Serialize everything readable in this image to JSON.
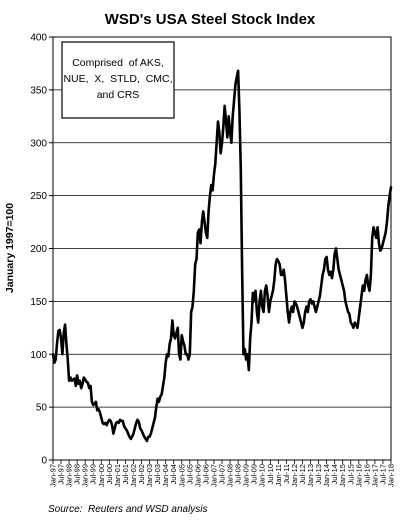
{
  "chart_data": {
    "type": "line",
    "title": "WSD's USA Steel Stock Index",
    "ylabel": "January 1997=100",
    "xlabel": "",
    "ylim": [
      0,
      400
    ],
    "yticks": [
      0,
      50,
      100,
      150,
      200,
      250,
      300,
      350,
      400
    ],
    "grid": "horizontal",
    "legend": "none",
    "annotation": [
      "Comprised  of AKS,",
      "NUE,  X,  STLD,  CMC,",
      "and CRS"
    ],
    "source": "Source:  Reuters and WSD analysis",
    "x_tick_labels": [
      "Jan-97",
      "Jul-97",
      "Jan-98",
      "Jul-98",
      "Jan-99",
      "Jul-99",
      "Jan-00",
      "Jul-00",
      "Jan-01",
      "Jul-01",
      "Jan-02",
      "Jul-02",
      "Jan-03",
      "Jul-03",
      "Jan-04",
      "Jul-04",
      "Jan-05",
      "Jul-05",
      "Jan-06",
      "Jul-06",
      "Jan-07",
      "Jul-07",
      "Jan-08",
      "Jul-08",
      "Jan-09",
      "Jul-09",
      "Jan-10",
      "Jul-10",
      "Jan-11",
      "Jul-11",
      "Jan-12",
      "Jul-12",
      "Jan-13",
      "Jul-13",
      "Jan-14",
      "Jul-14",
      "Jan-15",
      "Jul-15",
      "Jan-16",
      "Jul-16",
      "Jan-17",
      "Jul-17",
      "Jan-18"
    ],
    "series": [
      {
        "color": "#000000",
        "points": [
          [
            "Jan-97",
            100
          ],
          [
            "Feb-97",
            92
          ],
          [
            "Mar-97",
            95
          ],
          [
            "Apr-97",
            110
          ],
          [
            "May-97",
            122
          ],
          [
            "Jun-97",
            123
          ],
          [
            "Jul-97",
            115
          ],
          [
            "Aug-97",
            100
          ],
          [
            "Sep-97",
            120
          ],
          [
            "Oct-97",
            128
          ],
          [
            "Nov-97",
            110
          ],
          [
            "Dec-97",
            95
          ],
          [
            "Jan-98",
            75
          ],
          [
            "Feb-98",
            78
          ],
          [
            "Mar-98",
            75
          ],
          [
            "Apr-98",
            76
          ],
          [
            "May-98",
            77
          ],
          [
            "Jun-98",
            70
          ],
          [
            "Jul-98",
            80
          ],
          [
            "Aug-98",
            72
          ],
          [
            "Sep-98",
            75
          ],
          [
            "Oct-98",
            68
          ],
          [
            "Nov-98",
            72
          ],
          [
            "Dec-98",
            78
          ],
          [
            "Jan-99",
            76
          ],
          [
            "Feb-99",
            74
          ],
          [
            "Mar-99",
            73
          ],
          [
            "Apr-99",
            68
          ],
          [
            "May-99",
            70
          ],
          [
            "Jun-99",
            55
          ],
          [
            "Jul-99",
            52
          ],
          [
            "Aug-99",
            53
          ],
          [
            "Sep-99",
            55
          ],
          [
            "Oct-99",
            47
          ],
          [
            "Nov-99",
            48
          ],
          [
            "Dec-99",
            45
          ],
          [
            "Jan-00",
            40
          ],
          [
            "Feb-00",
            35
          ],
          [
            "Mar-00",
            34
          ],
          [
            "Apr-00",
            35
          ],
          [
            "May-00",
            33
          ],
          [
            "Jun-00",
            36
          ],
          [
            "Jul-00",
            38
          ],
          [
            "Aug-00",
            37
          ],
          [
            "Sep-00",
            33
          ],
          [
            "Oct-00",
            25
          ],
          [
            "Nov-00",
            30
          ],
          [
            "Dec-00",
            35
          ],
          [
            "Jan-01",
            36
          ],
          [
            "Feb-01",
            35
          ],
          [
            "Mar-01",
            38
          ],
          [
            "Apr-01",
            37
          ],
          [
            "May-01",
            37
          ],
          [
            "Jun-01",
            32
          ],
          [
            "Jul-01",
            30
          ],
          [
            "Aug-01",
            28
          ],
          [
            "Sep-01",
            25
          ],
          [
            "Oct-01",
            22
          ],
          [
            "Nov-01",
            20
          ],
          [
            "Dec-01",
            22
          ],
          [
            "Jan-02",
            25
          ],
          [
            "Feb-02",
            30
          ],
          [
            "Mar-02",
            35
          ],
          [
            "Apr-02",
            38
          ],
          [
            "May-02",
            36
          ],
          [
            "Jun-02",
            30
          ],
          [
            "Jul-02",
            28
          ],
          [
            "Aug-02",
            25
          ],
          [
            "Sep-02",
            22
          ],
          [
            "Oct-02",
            20
          ],
          [
            "Nov-02",
            18
          ],
          [
            "Dec-02",
            22
          ],
          [
            "Jan-03",
            22
          ],
          [
            "Feb-03",
            25
          ],
          [
            "Mar-03",
            30
          ],
          [
            "Apr-03",
            35
          ],
          [
            "May-03",
            40
          ],
          [
            "Jun-03",
            50
          ],
          [
            "Jul-03",
            58
          ],
          [
            "Aug-03",
            55
          ],
          [
            "Sep-03",
            60
          ],
          [
            "Oct-03",
            62
          ],
          [
            "Nov-03",
            70
          ],
          [
            "Dec-03",
            78
          ],
          [
            "Jan-04",
            92
          ],
          [
            "Feb-04",
            100
          ],
          [
            "Mar-04",
            98
          ],
          [
            "Apr-04",
            110
          ],
          [
            "May-04",
            115
          ],
          [
            "Jun-04",
            132
          ],
          [
            "Jul-04",
            118
          ],
          [
            "Aug-04",
            115
          ],
          [
            "Sep-04",
            120
          ],
          [
            "Oct-04",
            125
          ],
          [
            "Nov-04",
            100
          ],
          [
            "Dec-04",
            95
          ],
          [
            "Jan-05",
            118
          ],
          [
            "Feb-05",
            112
          ],
          [
            "Mar-05",
            108
          ],
          [
            "Apr-05",
            100
          ],
          [
            "May-05",
            100
          ],
          [
            "Jun-05",
            95
          ],
          [
            "Jul-05",
            100
          ],
          [
            "Aug-05",
            140
          ],
          [
            "Sep-05",
            145
          ],
          [
            "Oct-05",
            160
          ],
          [
            "Nov-05",
            185
          ],
          [
            "Dec-05",
            190
          ],
          [
            "Jan-06",
            215
          ],
          [
            "Feb-06",
            218
          ],
          [
            "Mar-06",
            205
          ],
          [
            "Apr-06",
            225
          ],
          [
            "May-06",
            235
          ],
          [
            "Jun-06",
            225
          ],
          [
            "Jul-06",
            215
          ],
          [
            "Aug-06",
            210
          ],
          [
            "Sep-06",
            235
          ],
          [
            "Oct-06",
            250
          ],
          [
            "Nov-06",
            260
          ],
          [
            "Dec-06",
            255
          ],
          [
            "Jan-07",
            270
          ],
          [
            "Feb-07",
            280
          ],
          [
            "Mar-07",
            300
          ],
          [
            "Apr-07",
            320
          ],
          [
            "May-07",
            310
          ],
          [
            "Jun-07",
            290
          ],
          [
            "Jul-07",
            300
          ],
          [
            "Aug-07",
            315
          ],
          [
            "Sep-07",
            335
          ],
          [
            "Oct-07",
            320
          ],
          [
            "Nov-07",
            305
          ],
          [
            "Dec-07",
            325
          ],
          [
            "Jan-08",
            310
          ],
          [
            "Feb-08",
            300
          ],
          [
            "Mar-08",
            325
          ],
          [
            "Apr-08",
            340
          ],
          [
            "May-08",
            355
          ],
          [
            "Jun-08",
            362
          ],
          [
            "Jul-08",
            368
          ],
          [
            "Aug-08",
            330
          ],
          [
            "Sep-08",
            275
          ],
          [
            "Oct-08",
            180
          ],
          [
            "Nov-08",
            100
          ],
          [
            "Dec-08",
            105
          ],
          [
            "Jan-09",
            95
          ],
          [
            "Feb-09",
            100
          ],
          [
            "Mar-09",
            85
          ],
          [
            "Apr-09",
            115
          ],
          [
            "May-09",
            130
          ],
          [
            "Jun-09",
            158
          ],
          [
            "Jul-09",
            150
          ],
          [
            "Aug-09",
            160
          ],
          [
            "Sep-09",
            140
          ],
          [
            "Oct-09",
            130
          ],
          [
            "Nov-09",
            150
          ],
          [
            "Dec-09",
            160
          ],
          [
            "Jan-10",
            145
          ],
          [
            "Feb-10",
            140
          ],
          [
            "Mar-10",
            160
          ],
          [
            "Apr-10",
            165
          ],
          [
            "May-10",
            155
          ],
          [
            "Jun-10",
            140
          ],
          [
            "Jul-10",
            150
          ],
          [
            "Aug-10",
            155
          ],
          [
            "Sep-10",
            160
          ],
          [
            "Oct-10",
            170
          ],
          [
            "Nov-10",
            185
          ],
          [
            "Dec-10",
            190
          ],
          [
            "Jan-11",
            188
          ],
          [
            "Feb-11",
            185
          ],
          [
            "Mar-11",
            175
          ],
          [
            "Apr-11",
            175
          ],
          [
            "May-11",
            180
          ],
          [
            "Jun-11",
            170
          ],
          [
            "Jul-11",
            155
          ],
          [
            "Aug-11",
            140
          ],
          [
            "Sep-11",
            130
          ],
          [
            "Oct-11",
            140
          ],
          [
            "Nov-11",
            145
          ],
          [
            "Dec-11",
            140
          ],
          [
            "Jan-12",
            150
          ],
          [
            "Feb-12",
            148
          ],
          [
            "Mar-12",
            145
          ],
          [
            "Apr-12",
            140
          ],
          [
            "May-12",
            135
          ],
          [
            "Jun-12",
            130
          ],
          [
            "Jul-12",
            125
          ],
          [
            "Aug-12",
            130
          ],
          [
            "Sep-12",
            140
          ],
          [
            "Oct-12",
            145
          ],
          [
            "Nov-12",
            140
          ],
          [
            "Dec-12",
            150
          ],
          [
            "Jan-13",
            152
          ],
          [
            "Feb-13",
            148
          ],
          [
            "Mar-13",
            150
          ],
          [
            "Apr-13",
            145
          ],
          [
            "May-13",
            140
          ],
          [
            "Jun-13",
            145
          ],
          [
            "Jul-13",
            150
          ],
          [
            "Aug-13",
            155
          ],
          [
            "Sep-13",
            165
          ],
          [
            "Oct-13",
            175
          ],
          [
            "Nov-13",
            180
          ],
          [
            "Dec-13",
            190
          ],
          [
            "Jan-14",
            192
          ],
          [
            "Feb-14",
            180
          ],
          [
            "Mar-14",
            175
          ],
          [
            "Apr-14",
            178
          ],
          [
            "May-14",
            172
          ],
          [
            "Jun-14",
            180
          ],
          [
            "Jul-14",
            195
          ],
          [
            "Aug-14",
            200
          ],
          [
            "Sep-14",
            190
          ],
          [
            "Oct-14",
            180
          ],
          [
            "Nov-14",
            175
          ],
          [
            "Dec-14",
            170
          ],
          [
            "Jan-15",
            165
          ],
          [
            "Feb-15",
            160
          ],
          [
            "Mar-15",
            150
          ],
          [
            "Apr-15",
            145
          ],
          [
            "May-15",
            140
          ],
          [
            "Jun-15",
            138
          ],
          [
            "Jul-15",
            130
          ],
          [
            "Aug-15",
            128
          ],
          [
            "Sep-15",
            125
          ],
          [
            "Oct-15",
            130
          ],
          [
            "Nov-15",
            128
          ],
          [
            "Dec-15",
            125
          ],
          [
            "Jan-16",
            135
          ],
          [
            "Feb-16",
            145
          ],
          [
            "Mar-16",
            155
          ],
          [
            "Apr-16",
            165
          ],
          [
            "May-16",
            160
          ],
          [
            "Jun-16",
            170
          ],
          [
            "Jul-16",
            175
          ],
          [
            "Aug-16",
            165
          ],
          [
            "Sep-16",
            160
          ],
          [
            "Oct-16",
            175
          ],
          [
            "Nov-16",
            210
          ],
          [
            "Dec-16",
            220
          ],
          [
            "Jan-17",
            215
          ],
          [
            "Feb-17",
            210
          ],
          [
            "Mar-17",
            220
          ],
          [
            "Apr-17",
            205
          ],
          [
            "May-17",
            198
          ],
          [
            "Jun-17",
            200
          ],
          [
            "Jul-17",
            205
          ],
          [
            "Aug-17",
            210
          ],
          [
            "Sep-17",
            215
          ],
          [
            "Oct-17",
            225
          ],
          [
            "Nov-17",
            240
          ],
          [
            "Dec-17",
            250
          ],
          [
            "Jan-18",
            258
          ]
        ]
      }
    ]
  }
}
